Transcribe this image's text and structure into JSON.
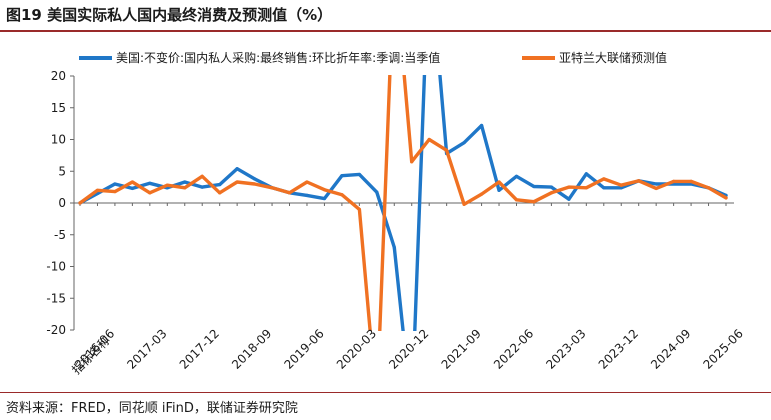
{
  "title": "图19 美国实际私人国内最终消费及预测值（%）",
  "source": "资料来源：FRED，同花顺 iFinD，联储证券研究院",
  "chart_data": {
    "type": "line",
    "ylim": [
      -20,
      20
    ],
    "yticks": [
      20,
      15,
      10,
      5,
      0,
      -5,
      -10,
      -15,
      -20
    ],
    "xlabel": "指标名称",
    "x_ticklabels": [
      "2016-06",
      "2017-03",
      "2017-12",
      "2018-09",
      "2019-06",
      "2020-03",
      "2020-12",
      "2021-09",
      "2022-06",
      "2023-03",
      "2023-12",
      "2024-09",
      "2025-06"
    ],
    "x": [
      "2016-03",
      "2016-06",
      "2016-09",
      "2016-12",
      "2017-03",
      "2017-06",
      "2017-09",
      "2017-12",
      "2018-03",
      "2018-06",
      "2018-09",
      "2018-12",
      "2019-03",
      "2019-06",
      "2019-09",
      "2019-12",
      "2020-03",
      "2020-06",
      "2020-09",
      "2020-12",
      "2021-03",
      "2021-06",
      "2021-09",
      "2021-12",
      "2022-03",
      "2022-06",
      "2022-09",
      "2022-12",
      "2023-03",
      "2023-06",
      "2023-09",
      "2023-12",
      "2024-03",
      "2024-06",
      "2024-09",
      "2024-12",
      "2025-03",
      "2025-06"
    ],
    "grid": false,
    "legend_position": "top",
    "series": [
      {
        "name": "美国:不变价:国内私人采购:最终销售:环比折年率:季调:当季值",
        "color": "#1f77c8",
        "values": [
          0,
          1.5,
          3,
          2.3,
          3.1,
          2.4,
          3.3,
          2.5,
          2.9,
          5.4,
          3.8,
          2.4,
          1.6,
          1.2,
          0.7,
          4.3,
          4.5,
          1.7,
          -7,
          -33,
          40,
          7.8,
          9.5,
          12.2,
          2,
          4.2,
          2.6,
          2.5,
          0.6,
          4.6,
          2.4,
          2.4,
          3.5,
          3,
          3,
          3,
          2.4,
          1.2
        ]
      },
      {
        "name": "亚特兰大联储预测值",
        "color": "#f07122",
        "values": [
          0,
          2,
          1.8,
          3.3,
          1.6,
          2.8,
          2.4,
          4.2,
          1.6,
          3.3,
          3,
          2.4,
          1.6,
          3.3,
          2.1,
          1.3,
          -1,
          -32,
          38,
          6.5,
          10,
          8.3,
          -0.2,
          1.4,
          3.3,
          0.5,
          0.2,
          1.6,
          2.5,
          2.4,
          3.8,
          2.8,
          3.5,
          2.3,
          3.4,
          3.4,
          2.4,
          0.8
        ]
      }
    ]
  }
}
